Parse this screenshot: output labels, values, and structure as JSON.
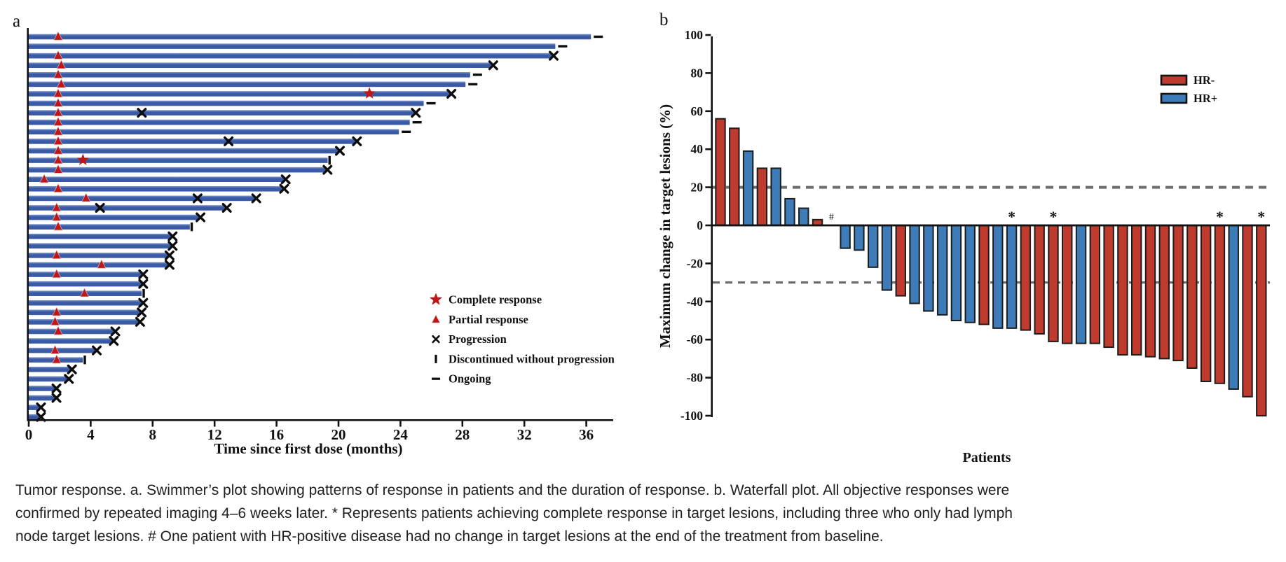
{
  "colors": {
    "swimmer_bar": "#3a5aa5",
    "swimmer_bar_highlight": "#7c97cc",
    "response_red": "#bf1717",
    "hr_negative": "#be3b2e",
    "hr_positive": "#3e7cb9",
    "axis_black": "#111111",
    "dashed_gray": "#6e6e6e",
    "bar_outline": "#1c1c1c"
  },
  "caption": {
    "lines": [
      "Tumor response. a. Swimmer’s plot showing patterns of response in patients and the duration of response. b. Waterfall plot. All objective responses were",
      "confirmed by repeated imaging 4–6 weeks later. * Represents patients achieving complete response in target lesions, including three who only had lymph",
      "node target lesions. # One patient with HR-positive disease had no change in target lesions at the end of the treatment from baseline."
    ]
  },
  "chart_data": [
    {
      "type": "swimmer",
      "panel_label": "a",
      "xlabel": "Time since first dose (months)",
      "xlim": [
        0,
        37.5
      ],
      "x_ticks": [
        0,
        4,
        8,
        12,
        16,
        20,
        24,
        28,
        32,
        36
      ],
      "grid": false,
      "legend_position": "center-right",
      "legend": [
        {
          "marker": "star",
          "label": "Complete response"
        },
        {
          "marker": "triangle",
          "label": "Partial response"
        },
        {
          "marker": "x",
          "label": "Progression"
        },
        {
          "marker": "tick",
          "label": "Discontinued without progression"
        },
        {
          "marker": "dash",
          "label": "Ongoing"
        }
      ],
      "patients": [
        {
          "bar": 36.3,
          "end": "ongoing",
          "pr": [
            1.9
          ]
        },
        {
          "bar": 34.0,
          "end": "ongoing"
        },
        {
          "bar": 33.8,
          "end": "x",
          "pr": [
            1.9
          ]
        },
        {
          "bar": 29.9,
          "end": "x",
          "pr": [
            2.1
          ]
        },
        {
          "bar": 28.5,
          "end": "ongoing",
          "pr": [
            1.9
          ]
        },
        {
          "bar": 28.2,
          "end": "ongoing",
          "pr": [
            2.1
          ]
        },
        {
          "bar": 27.2,
          "end": "x",
          "pr": [
            1.9
          ],
          "cr": [
            22.0
          ]
        },
        {
          "bar": 25.5,
          "end": "ongoing",
          "pr": [
            1.9
          ]
        },
        {
          "bar": 24.9,
          "end": "x",
          "pr": [
            1.9
          ],
          "mx": [
            7.3
          ]
        },
        {
          "bar": 24.6,
          "end": "ongoing",
          "pr": [
            1.9
          ]
        },
        {
          "bar": 23.9,
          "end": "ongoing",
          "pr": [
            1.9
          ]
        },
        {
          "bar": 21.1,
          "end": "x",
          "pr": [
            1.9
          ],
          "mx": [
            12.9
          ]
        },
        {
          "bar": 20.0,
          "end": "x",
          "pr": [
            1.9
          ]
        },
        {
          "bar": 19.3,
          "end": "disc",
          "pr": [
            1.9
          ],
          "cr": [
            3.5
          ]
        },
        {
          "bar": 19.2,
          "end": "x",
          "pr": [
            1.9
          ]
        },
        {
          "bar": 16.5,
          "end": "x",
          "pr": [
            1.0
          ]
        },
        {
          "bar": 16.4,
          "end": "x",
          "pr": [
            1.9
          ]
        },
        {
          "bar": 14.6,
          "end": "x",
          "pr": [
            3.7
          ],
          "mx": [
            10.9
          ]
        },
        {
          "bar": 12.7,
          "end": "x",
          "pr": [
            1.8
          ],
          "mx": [
            4.6
          ]
        },
        {
          "bar": 11.0,
          "end": "x",
          "pr": [
            1.8
          ]
        },
        {
          "bar": 10.4,
          "end": "disc",
          "pr": [
            1.9
          ]
        },
        {
          "bar": 9.2,
          "end": "x"
        },
        {
          "bar": 9.2,
          "end": "x"
        },
        {
          "bar": 9.0,
          "end": "x",
          "pr": [
            1.8
          ]
        },
        {
          "bar": 9.0,
          "end": "x",
          "pr": [
            4.7
          ]
        },
        {
          "bar": 7.3,
          "end": "x",
          "pr": [
            1.8
          ]
        },
        {
          "bar": 7.3,
          "end": "x"
        },
        {
          "bar": 7.3,
          "end": "disc",
          "pr": [
            3.6
          ]
        },
        {
          "bar": 7.3,
          "end": "x"
        },
        {
          "bar": 7.2,
          "end": "x",
          "pr": [
            1.8
          ]
        },
        {
          "bar": 7.1,
          "end": "x",
          "pr": [
            1.7
          ]
        },
        {
          "bar": 5.5,
          "end": "x",
          "pr": [
            1.9
          ]
        },
        {
          "bar": 5.4,
          "end": "x"
        },
        {
          "bar": 4.3,
          "end": "x",
          "pr": [
            1.7
          ]
        },
        {
          "bar": 3.5,
          "end": "disc",
          "pr": [
            1.8
          ]
        },
        {
          "bar": 2.7,
          "end": "x"
        },
        {
          "bar": 2.5,
          "end": "x"
        },
        {
          "bar": 1.7,
          "end": "x"
        },
        {
          "bar": 1.7,
          "end": "x"
        },
        {
          "bar": 0.7,
          "end": "x"
        },
        {
          "bar": 0.7,
          "end": "x"
        }
      ]
    },
    {
      "type": "waterfall",
      "panel_label": "b",
      "ylabel": "Maximum change in target lesions (%)",
      "xlabel": "Patients",
      "ylim": [
        -100,
        100
      ],
      "y_ticks": [
        100,
        80,
        60,
        40,
        20,
        0,
        -20,
        -40,
        -60,
        -80,
        -100
      ],
      "reference_lines": [
        20,
        -30
      ],
      "grid": false,
      "legend_position": "top-right",
      "legend": [
        {
          "label": "HR-",
          "group": "HR-",
          "color_key": "hr_negative"
        },
        {
          "label": "HR+",
          "group": "HR+",
          "color_key": "hr_positive"
        }
      ],
      "patients": [
        {
          "value": 56,
          "group": "HR-"
        },
        {
          "value": 51,
          "group": "HR-"
        },
        {
          "value": 39,
          "group": "HR+"
        },
        {
          "value": 30,
          "group": "HR-"
        },
        {
          "value": 30,
          "group": "HR+"
        },
        {
          "value": 14,
          "group": "HR+"
        },
        {
          "value": 9,
          "group": "HR+"
        },
        {
          "value": 3,
          "group": "HR-"
        },
        {
          "value": 0,
          "group": "HR+",
          "annotation": "#"
        },
        {
          "value": -12,
          "group": "HR+"
        },
        {
          "value": -13,
          "group": "HR+"
        },
        {
          "value": -22,
          "group": "HR+"
        },
        {
          "value": -34,
          "group": "HR+"
        },
        {
          "value": -37,
          "group": "HR-"
        },
        {
          "value": -41,
          "group": "HR+"
        },
        {
          "value": -45,
          "group": "HR+"
        },
        {
          "value": -47,
          "group": "HR+"
        },
        {
          "value": -50,
          "group": "HR+"
        },
        {
          "value": -51,
          "group": "HR+"
        },
        {
          "value": -52,
          "group": "HR-"
        },
        {
          "value": -54,
          "group": "HR+"
        },
        {
          "value": -54,
          "group": "HR+",
          "annotation": "*"
        },
        {
          "value": -55,
          "group": "HR-"
        },
        {
          "value": -57,
          "group": "HR-"
        },
        {
          "value": -61,
          "group": "HR-",
          "annotation": "*"
        },
        {
          "value": -62,
          "group": "HR-"
        },
        {
          "value": -62,
          "group": "HR+"
        },
        {
          "value": -62,
          "group": "HR-"
        },
        {
          "value": -64,
          "group": "HR-"
        },
        {
          "value": -68,
          "group": "HR-"
        },
        {
          "value": -68,
          "group": "HR-"
        },
        {
          "value": -69,
          "group": "HR-"
        },
        {
          "value": -70,
          "group": "HR-"
        },
        {
          "value": -71,
          "group": "HR-"
        },
        {
          "value": -75,
          "group": "HR-"
        },
        {
          "value": -82,
          "group": "HR-"
        },
        {
          "value": -83,
          "group": "HR-",
          "annotation": "*"
        },
        {
          "value": -86,
          "group": "HR+"
        },
        {
          "value": -90,
          "group": "HR-"
        },
        {
          "value": -100,
          "group": "HR-",
          "annotation": "*"
        }
      ]
    }
  ]
}
